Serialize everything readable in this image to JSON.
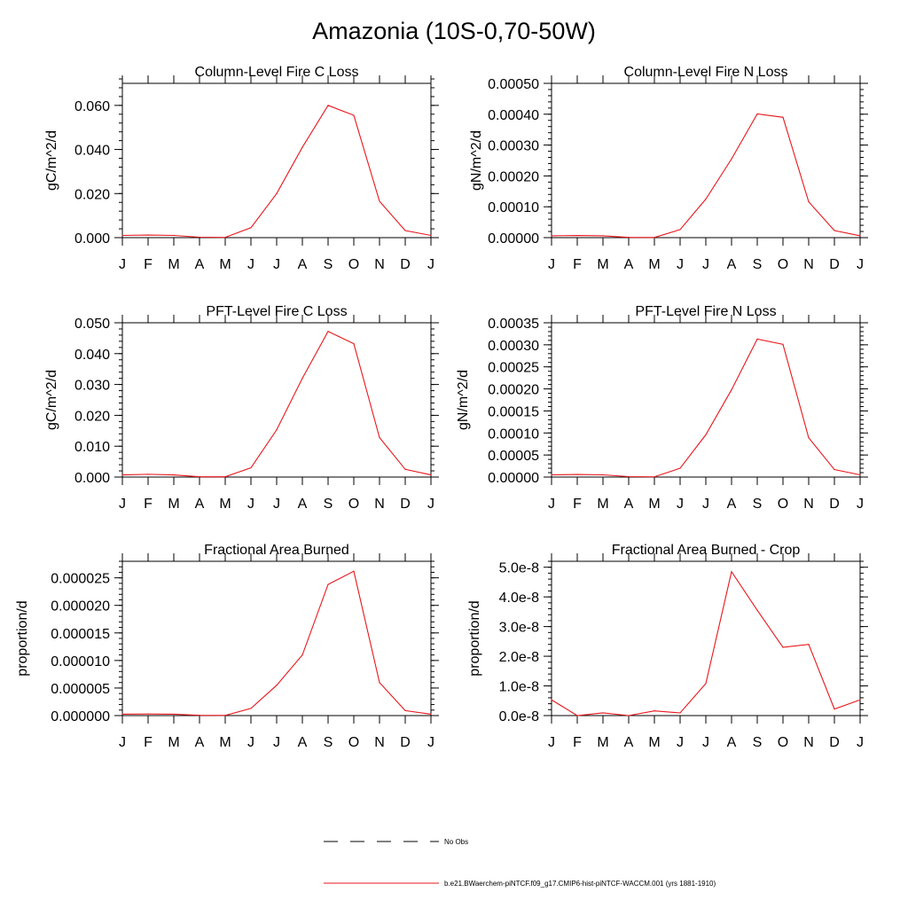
{
  "figure": {
    "title": "Amazonia (10S-0,70-50W)"
  },
  "months": [
    "J",
    "F",
    "M",
    "A",
    "M",
    "J",
    "J",
    "A",
    "S",
    "O",
    "N",
    "D",
    "J"
  ],
  "colors": {
    "series": "#e8161b",
    "axis": "#000000",
    "legend_obs": "#000000"
  },
  "chart_data": [
    {
      "type": "line",
      "title": "Column-Level Fire C Loss",
      "ylabel": "gC/m^2/d",
      "ylim": [
        0,
        0.07
      ],
      "yticks": [
        0,
        0.02,
        0.04,
        0.06
      ],
      "ytick_labels": [
        "0.000",
        "0.020",
        "0.040",
        "0.060"
      ],
      "y_minor_step": 0.004,
      "x": [
        "J",
        "F",
        "M",
        "A",
        "M",
        "J",
        "J",
        "A",
        "S",
        "O",
        "N",
        "D",
        "J"
      ],
      "series": [
        {
          "values": [
            0.001,
            0.0012,
            0.001,
            0.0002,
            0.0001,
            0.0045,
            0.02,
            0.041,
            0.06,
            0.0555,
            0.0165,
            0.0032,
            0.001
          ]
        }
      ]
    },
    {
      "type": "line",
      "title": "Column-Level Fire N Loss",
      "ylabel": "gN/m^2/d",
      "ylim": [
        0,
        0.0005
      ],
      "yticks": [
        0,
        0.0001,
        0.0002,
        0.0003,
        0.0004,
        0.0005
      ],
      "ytick_labels": [
        "0.00000",
        "0.00010",
        "0.00020",
        "0.00030",
        "0.00040",
        "0.00050"
      ],
      "y_minor_step": 2e-05,
      "x": [
        "J",
        "F",
        "M",
        "A",
        "M",
        "J",
        "J",
        "A",
        "S",
        "O",
        "N",
        "D",
        "J"
      ],
      "series": [
        {
          "values": [
            6e-06,
            7e-06,
            6e-06,
            1e-06,
            5e-07,
            2.6e-05,
            0.000125,
            0.000255,
            0.000401,
            0.00039,
            0.000116,
            2.3e-05,
            6e-06
          ]
        }
      ]
    },
    {
      "type": "line",
      "title": "PFT-Level Fire C Loss",
      "ylabel": "gC/m^2/d",
      "ylim": [
        0,
        0.05
      ],
      "yticks": [
        0,
        0.01,
        0.02,
        0.03,
        0.04,
        0.05
      ],
      "ytick_labels": [
        "0.000",
        "0.010",
        "0.020",
        "0.030",
        "0.040",
        "0.050"
      ],
      "y_minor_step": 0.002,
      "x": [
        "J",
        "F",
        "M",
        "A",
        "M",
        "J",
        "J",
        "A",
        "S",
        "O",
        "N",
        "D",
        "J"
      ],
      "series": [
        {
          "values": [
            0.0007,
            0.0009,
            0.0007,
            0.0001,
            0.0001,
            0.003,
            0.0153,
            0.032,
            0.0472,
            0.0432,
            0.0128,
            0.0025,
            0.0007
          ]
        }
      ]
    },
    {
      "type": "line",
      "title": "PFT-Level Fire N Loss",
      "ylabel": "gN/m^2/d",
      "ylim": [
        0,
        0.00035
      ],
      "yticks": [
        0,
        5e-05,
        0.0001,
        0.00015,
        0.0002,
        0.00025,
        0.0003,
        0.00035
      ],
      "ytick_labels": [
        "0.00000",
        "0.00005",
        "0.00010",
        "0.00015",
        "0.00020",
        "0.00025",
        "0.00030",
        "0.00035"
      ],
      "y_minor_step": 1e-05,
      "x": [
        "J",
        "F",
        "M",
        "A",
        "M",
        "J",
        "J",
        "A",
        "S",
        "O",
        "N",
        "D",
        "J"
      ],
      "series": [
        {
          "values": [
            5e-06,
            6e-06,
            5e-06,
            1e-06,
            5e-07,
            2e-05,
            9.6e-05,
            0.000198,
            0.000313,
            0.000301,
            8.9e-05,
            1.7e-05,
            5e-06
          ]
        }
      ]
    },
    {
      "type": "line",
      "title": "Fractional Area Burned",
      "ylabel": "proportion/d",
      "ylim": [
        0,
        2.8e-05
      ],
      "yticks": [
        0,
        5e-06,
        1e-05,
        1.5e-05,
        2e-05,
        2.5e-05
      ],
      "ytick_labels": [
        "0.000000",
        "0.000005",
        "0.000010",
        "0.000015",
        "0.000020",
        "0.000025"
      ],
      "y_minor_step": 1e-06,
      "x": [
        "J",
        "F",
        "M",
        "A",
        "M",
        "J",
        "J",
        "A",
        "S",
        "O",
        "N",
        "D",
        "J"
      ],
      "series": [
        {
          "values": [
            2.5e-07,
            3e-07,
            2.5e-07,
            5e-08,
            3e-08,
            1.3e-06,
            5.5e-06,
            1.1e-05,
            2.38e-05,
            2.62e-05,
            6e-06,
            9e-07,
            2.5e-07
          ]
        }
      ]
    },
    {
      "type": "line",
      "title": "Fractional Area Burned - Crop",
      "ylabel": "proportion/d",
      "ylim": [
        0,
        5.2e-08
      ],
      "yticks": [
        0,
        1e-08,
        2e-08,
        3e-08,
        4e-08,
        5e-08
      ],
      "ytick_labels": [
        "0.0e-8",
        "1.0e-8",
        "2.0e-8",
        "3.0e-8",
        "4.0e-8",
        "5.0e-8"
      ],
      "y_minor_step": 2e-09,
      "x": [
        "J",
        "F",
        "M",
        "A",
        "M",
        "J",
        "J",
        "A",
        "S",
        "O",
        "N",
        "D",
        "J"
      ],
      "series": [
        {
          "values": [
            5.3e-09,
            0.0,
            9e-10,
            0.0,
            1.6e-09,
            9e-10,
            1.08e-08,
            4.85e-08,
            3.55e-08,
            2.3e-08,
            2.4e-08,
            2.2e-09,
            5.3e-09
          ]
        }
      ]
    }
  ],
  "legend": {
    "obs_label": "No Obs",
    "model_label": "b.e21.BWaerchem-piNTCF.f09_g17.CMIP6-hist-piNTCF-WACCM.001 (yrs 1881-1910)"
  }
}
